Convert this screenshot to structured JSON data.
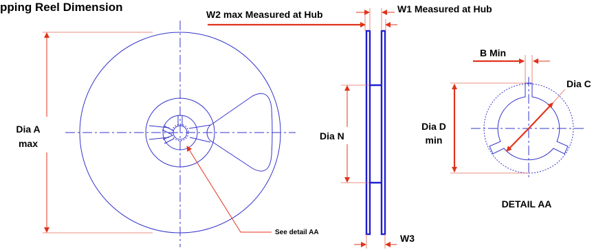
{
  "title": "pping Reel Dimension",
  "labels": {
    "dia_a_line1": "Dia A",
    "dia_a_line2": "max",
    "w2": "W2 max Measured at Hub",
    "w1": "W1 Measured at Hub",
    "dia_n": "Dia N",
    "w3": "W3",
    "b_min": "B Min",
    "dia_c": "Dia C",
    "dia_d_line1": "Dia D",
    "dia_d_line2": "min",
    "detail_aa": "DETAIL AA",
    "see_detail": "See detail AA"
  },
  "colors": {
    "outline": "#3333cc",
    "dimension": "#e0331b",
    "text": "#000000"
  }
}
